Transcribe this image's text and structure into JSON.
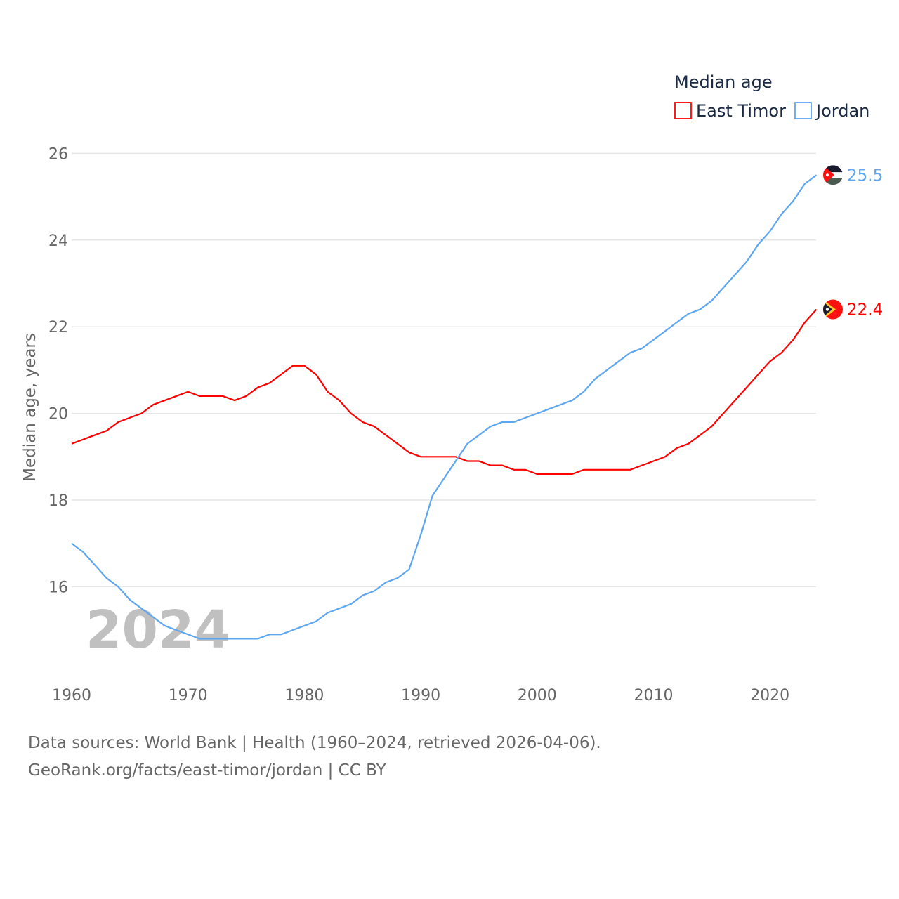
{
  "chart_data": {
    "type": "line",
    "title": "",
    "legend_title": "Median age",
    "legend_position": "top-right",
    "ylabel": "Median age, years",
    "xlabel": "",
    "ylim": [
      14.6,
      26
    ],
    "xlim": [
      1960,
      2024
    ],
    "yticks": [
      "16",
      "18",
      "20",
      "22",
      "24",
      "26"
    ],
    "xticks": [
      "1960",
      "1970",
      "1980",
      "1990",
      "2000",
      "2010",
      "2020"
    ],
    "grid": true,
    "year_watermark": "2024",
    "x": [
      1960,
      1961,
      1962,
      1963,
      1964,
      1965,
      1966,
      1967,
      1968,
      1969,
      1970,
      1971,
      1972,
      1973,
      1974,
      1975,
      1976,
      1977,
      1978,
      1979,
      1980,
      1981,
      1982,
      1983,
      1984,
      1985,
      1986,
      1987,
      1988,
      1989,
      1990,
      1991,
      1992,
      1993,
      1994,
      1995,
      1996,
      1997,
      1998,
      1999,
      2000,
      2001,
      2002,
      2003,
      2004,
      2005,
      2006,
      2007,
      2008,
      2009,
      2010,
      2011,
      2012,
      2013,
      2014,
      2015,
      2016,
      2017,
      2018,
      2019,
      2020,
      2021,
      2022,
      2023,
      2024
    ],
    "series": [
      {
        "name": "East Timor",
        "color": "#ff0000",
        "end_label": "22.4",
        "values": [
          19.3,
          19.4,
          19.5,
          19.6,
          19.8,
          19.9,
          20.0,
          20.2,
          20.3,
          20.4,
          20.5,
          20.4,
          20.4,
          20.4,
          20.3,
          20.4,
          20.6,
          20.7,
          20.9,
          21.1,
          21.1,
          20.9,
          20.5,
          20.3,
          20.0,
          19.8,
          19.7,
          19.5,
          19.3,
          19.1,
          19.0,
          19.0,
          19.0,
          19.0,
          18.9,
          18.9,
          18.8,
          18.8,
          18.7,
          18.7,
          18.6,
          18.6,
          18.6,
          18.6,
          18.7,
          18.7,
          18.7,
          18.7,
          18.7,
          18.8,
          18.9,
          19.0,
          19.2,
          19.3,
          19.5,
          19.7,
          20.0,
          20.3,
          20.6,
          20.9,
          21.2,
          21.4,
          21.7,
          22.1,
          22.4
        ]
      },
      {
        "name": "Jordan",
        "color": "#5ea6f0",
        "end_label": "25.5",
        "values": [
          17.0,
          16.8,
          16.5,
          16.2,
          16.0,
          15.7,
          15.5,
          15.3,
          15.1,
          15.0,
          14.9,
          14.8,
          14.8,
          14.8,
          14.8,
          14.8,
          14.8,
          14.9,
          14.9,
          15.0,
          15.1,
          15.2,
          15.4,
          15.5,
          15.6,
          15.8,
          15.9,
          16.1,
          16.2,
          16.4,
          17.2,
          18.1,
          18.5,
          18.9,
          19.3,
          19.5,
          19.7,
          19.8,
          19.8,
          19.9,
          20.0,
          20.1,
          20.2,
          20.3,
          20.5,
          20.8,
          21.0,
          21.2,
          21.4,
          21.5,
          21.7,
          21.9,
          22.1,
          22.3,
          22.4,
          22.6,
          22.9,
          23.2,
          23.5,
          23.9,
          24.2,
          24.6,
          24.9,
          25.3,
          25.5
        ]
      }
    ]
  },
  "footer": {
    "line1": "Data sources: World Bank | Health (1960–2024, retrieved 2026-04-06).",
    "line2": "GeoRank.org/facts/east-timor/jordan | CC BY"
  }
}
